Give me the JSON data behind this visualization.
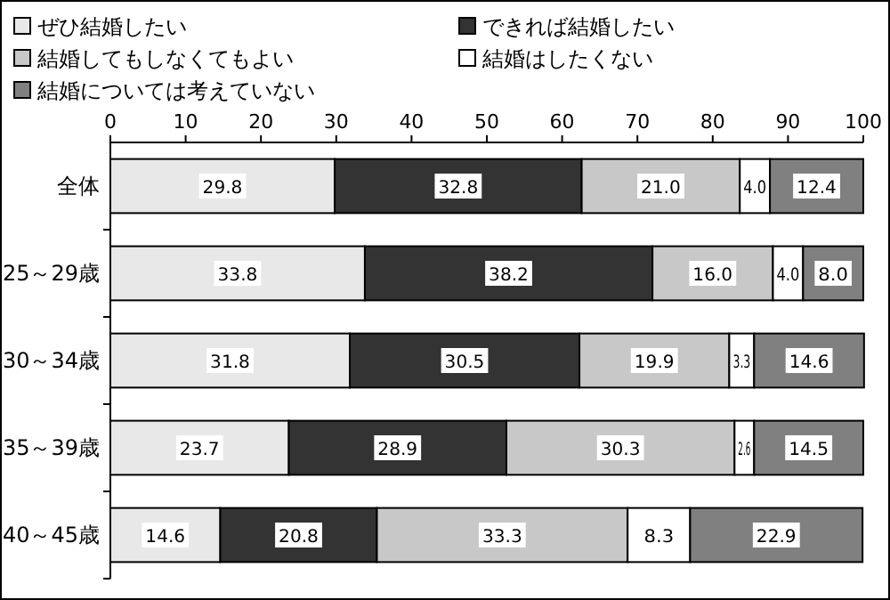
{
  "chart_data": {
    "type": "bar",
    "orientation": "horizontal",
    "stacked": true,
    "legend": "top",
    "categories": [
      "全体",
      "25～29歳",
      "30～34歳",
      "35～39歳",
      "40～45歳"
    ],
    "xlim": [
      0,
      100
    ],
    "xticks": [
      0,
      10,
      20,
      30,
      40,
      50,
      60,
      70,
      80,
      90,
      100
    ],
    "series": [
      {
        "name": "ぜひ結婚したい",
        "color": "#e8e8e8",
        "values": [
          29.8,
          33.8,
          31.8,
          23.7,
          14.6
        ],
        "value_labels": [
          "29.8",
          "33.8",
          "31.8",
          "23.7",
          "14.6"
        ]
      },
      {
        "name": "できれば結婚したい",
        "color": "#333333",
        "values": [
          32.8,
          38.2,
          30.5,
          28.9,
          20.8
        ],
        "value_labels": [
          "32.8",
          "38.2",
          "30.5",
          "28.9",
          "20.8"
        ]
      },
      {
        "name": "結婚してもしなくてもよい",
        "color": "#c8c8c8",
        "values": [
          21.0,
          16.0,
          19.9,
          30.3,
          33.3
        ],
        "value_labels": [
          "21.0",
          "16.0",
          "19.9",
          "30.3",
          "33.3"
        ]
      },
      {
        "name": "結婚はしたくない",
        "color": "#ffffff",
        "values": [
          4.0,
          4.0,
          3.3,
          2.6,
          8.3
        ],
        "value_labels": [
          "4.0",
          "4.0",
          "3.3",
          "2.6",
          "8.3"
        ]
      },
      {
        "name": "結婚については考えていない",
        "color": "#808080",
        "values": [
          12.4,
          8.0,
          14.6,
          14.5,
          22.9
        ],
        "value_labels": [
          "12.4",
          "8.0",
          "14.6",
          "14.5",
          "22.9"
        ]
      }
    ]
  }
}
